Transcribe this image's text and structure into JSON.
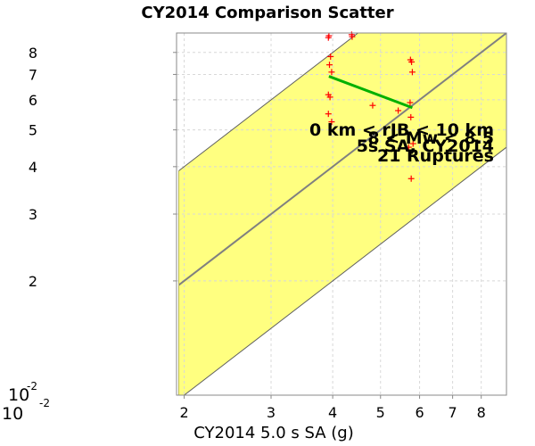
{
  "chart_data": {
    "type": "scatter",
    "title": "CY2014 Comparison Scatter",
    "xlabel": "CY2014 5.0 s SA (g)",
    "ylabel": "",
    "x_scale": "log",
    "y_scale": "log",
    "xlim": [
      0.01,
      0.09
    ],
    "ylim": [
      0.01,
      0.09
    ],
    "x_ticks": [
      {
        "v": 0.02,
        "label": "2"
      },
      {
        "v": 0.03,
        "label": "3"
      },
      {
        "v": 0.04,
        "label": "4"
      },
      {
        "v": 0.05,
        "label": "5"
      },
      {
        "v": 0.06,
        "label": "6"
      },
      {
        "v": 0.07,
        "label": "7"
      },
      {
        "v": 0.08,
        "label": "8"
      }
    ],
    "y_ticks": [
      {
        "v": 0.02,
        "label": "2"
      },
      {
        "v": 0.03,
        "label": "3"
      },
      {
        "v": 0.04,
        "label": "4"
      },
      {
        "v": 0.05,
        "label": "5"
      },
      {
        "v": 0.06,
        "label": "6"
      },
      {
        "v": 0.07,
        "label": "7"
      },
      {
        "v": 0.08,
        "label": "8"
      }
    ],
    "x_min_label": {
      "base": "10",
      "exp": "-2"
    },
    "y_min_label": {
      "base": "10",
      "exp": "-2"
    },
    "grid": true,
    "band": {
      "x_start": 0.0195,
      "x_end": 0.09,
      "factor": 2.0,
      "color": "#ffff80"
    },
    "one_to_one_line": {
      "color": "#808080"
    },
    "fit_line": {
      "x": [
        0.0393,
        0.058
      ],
      "y": [
        0.0692,
        0.0572
      ],
      "color": "#00b000"
    },
    "points": {
      "color": "#ff0000",
      "marker": "+",
      "x": [
        0.0393,
        0.0437,
        0.0392,
        0.0396,
        0.0394,
        0.0398,
        0.0392,
        0.0395,
        0.0392,
        0.0398,
        0.0438,
        0.0575,
        0.0578,
        0.058,
        0.0574,
        0.0576,
        0.0482,
        0.0543,
        0.0582,
        0.057,
        0.0577
      ],
      "y": [
        0.0885,
        0.0891,
        0.0875,
        0.078,
        0.0742,
        0.071,
        0.0619,
        0.061,
        0.0551,
        0.0525,
        0.088,
        0.0765,
        0.0755,
        0.071,
        0.059,
        0.054,
        0.058,
        0.0562,
        0.046,
        0.045,
        0.0372
      ]
    },
    "annotation": [
      "0 km < rJB < 10 km",
      "8 < Mw < 8.5",
      "5s SA, CY2014",
      "21 Ruptures"
    ]
  }
}
